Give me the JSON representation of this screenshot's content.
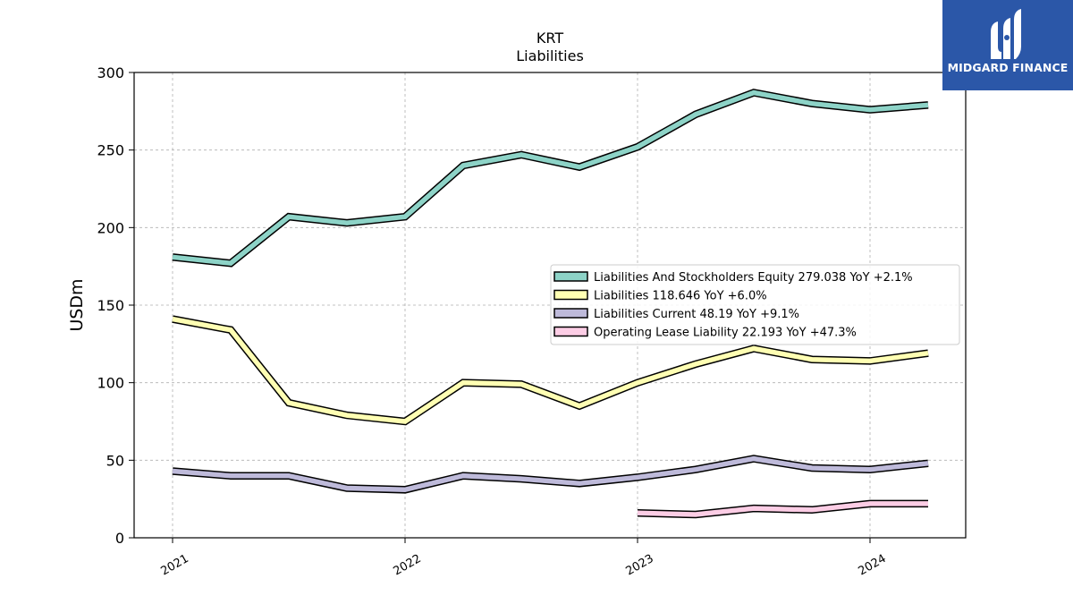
{
  "chart_data": {
    "type": "line",
    "title": "KRT",
    "subtitle": "Liabilities",
    "ylabel": "USDm",
    "xlabel": "",
    "ylim": [
      0,
      300
    ],
    "yticks": [
      0,
      50,
      100,
      150,
      200,
      250,
      300
    ],
    "xticks": [
      "2021",
      "2022",
      "2023",
      "2024"
    ],
    "grid": true,
    "legend_position": "center-right",
    "x": [
      "2021-01",
      "2021-04",
      "2021-07",
      "2021-10",
      "2022-01",
      "2022-04",
      "2022-07",
      "2022-10",
      "2023-01",
      "2023-04",
      "2023-07",
      "2023-10",
      "2024-01",
      "2024-04"
    ],
    "series": [
      {
        "name": "Liabilities And Stockholders Equity",
        "legend": "Liabilities And Stockholders Equity  279.038 YoY +2.1%",
        "color": "#8dd3c7",
        "values": [
          181,
          177,
          207,
          203,
          207,
          240,
          247,
          239,
          252,
          273,
          287,
          280,
          276,
          279
        ]
      },
      {
        "name": "Liabilities",
        "legend": "Liabilities  118.646 YoY +6.0%",
        "color": "#ffffb3",
        "values": [
          141,
          134,
          87,
          79,
          75,
          100,
          99,
          85,
          100,
          112,
          122,
          115,
          114,
          119
        ]
      },
      {
        "name": "Liabilities Current",
        "legend": "Liabilities Current  48.19 YoY +9.1%",
        "color": "#bebada",
        "values": [
          43,
          40,
          40,
          32,
          31,
          40,
          38,
          35,
          39,
          44,
          51,
          45,
          44,
          48
        ]
      },
      {
        "name": "Operating Lease Liability",
        "legend": "Operating Lease Liability  22.193 YoY +47.3%",
        "color": "#fccde5",
        "values": [
          null,
          null,
          null,
          null,
          null,
          null,
          null,
          null,
          16,
          15,
          19,
          18,
          22,
          22
        ]
      }
    ]
  },
  "logo": {
    "text": "MIDGARD FINANCE",
    "background": "#2b57a8"
  }
}
